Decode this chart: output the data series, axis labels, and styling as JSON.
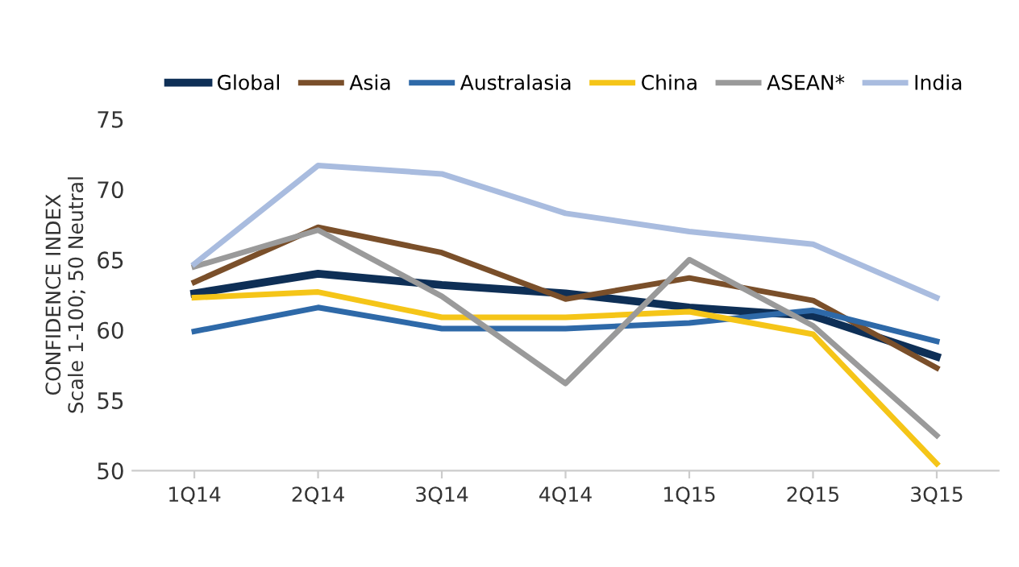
{
  "chart_data": {
    "type": "line",
    "ylabel": "CONFIDENCE INDEX\nScale 1-100; 50 Neutral",
    "categories": [
      "1Q14",
      "2Q14",
      "3Q14",
      "4Q14",
      "1Q15",
      "2Q15",
      "3Q15"
    ],
    "series": [
      {
        "name": "Global",
        "color": "#0e2f56",
        "values": [
          62.6,
          64.0,
          63.2,
          62.6,
          61.6,
          61.0,
          58.1
        ]
      },
      {
        "name": "Asia",
        "color": "#7a4f2a",
        "values": [
          63.4,
          67.3,
          65.5,
          62.2,
          63.7,
          62.1,
          57.3
        ]
      },
      {
        "name": "Australasia",
        "color": "#2e69a8",
        "values": [
          59.9,
          61.6,
          60.1,
          60.1,
          60.5,
          61.4,
          59.2
        ]
      },
      {
        "name": "China",
        "color": "#f5c518",
        "values": [
          62.3,
          62.7,
          60.9,
          60.9,
          61.3,
          59.7,
          50.5
        ]
      },
      {
        "name": "ASEAN*",
        "color": "#9a9a9a",
        "values": [
          64.5,
          67.1,
          62.4,
          56.2,
          65.0,
          60.3,
          52.5
        ]
      },
      {
        "name": "India",
        "color": "#a9bcdf",
        "values": [
          64.7,
          71.7,
          71.1,
          68.3,
          67.0,
          66.1,
          62.3
        ]
      }
    ],
    "ylim": [
      50,
      75
    ],
    "yticks": [
      50,
      55,
      60,
      65,
      70,
      75
    ],
    "grid": false,
    "legend": "top",
    "marker": "none",
    "line_style": "solid"
  }
}
